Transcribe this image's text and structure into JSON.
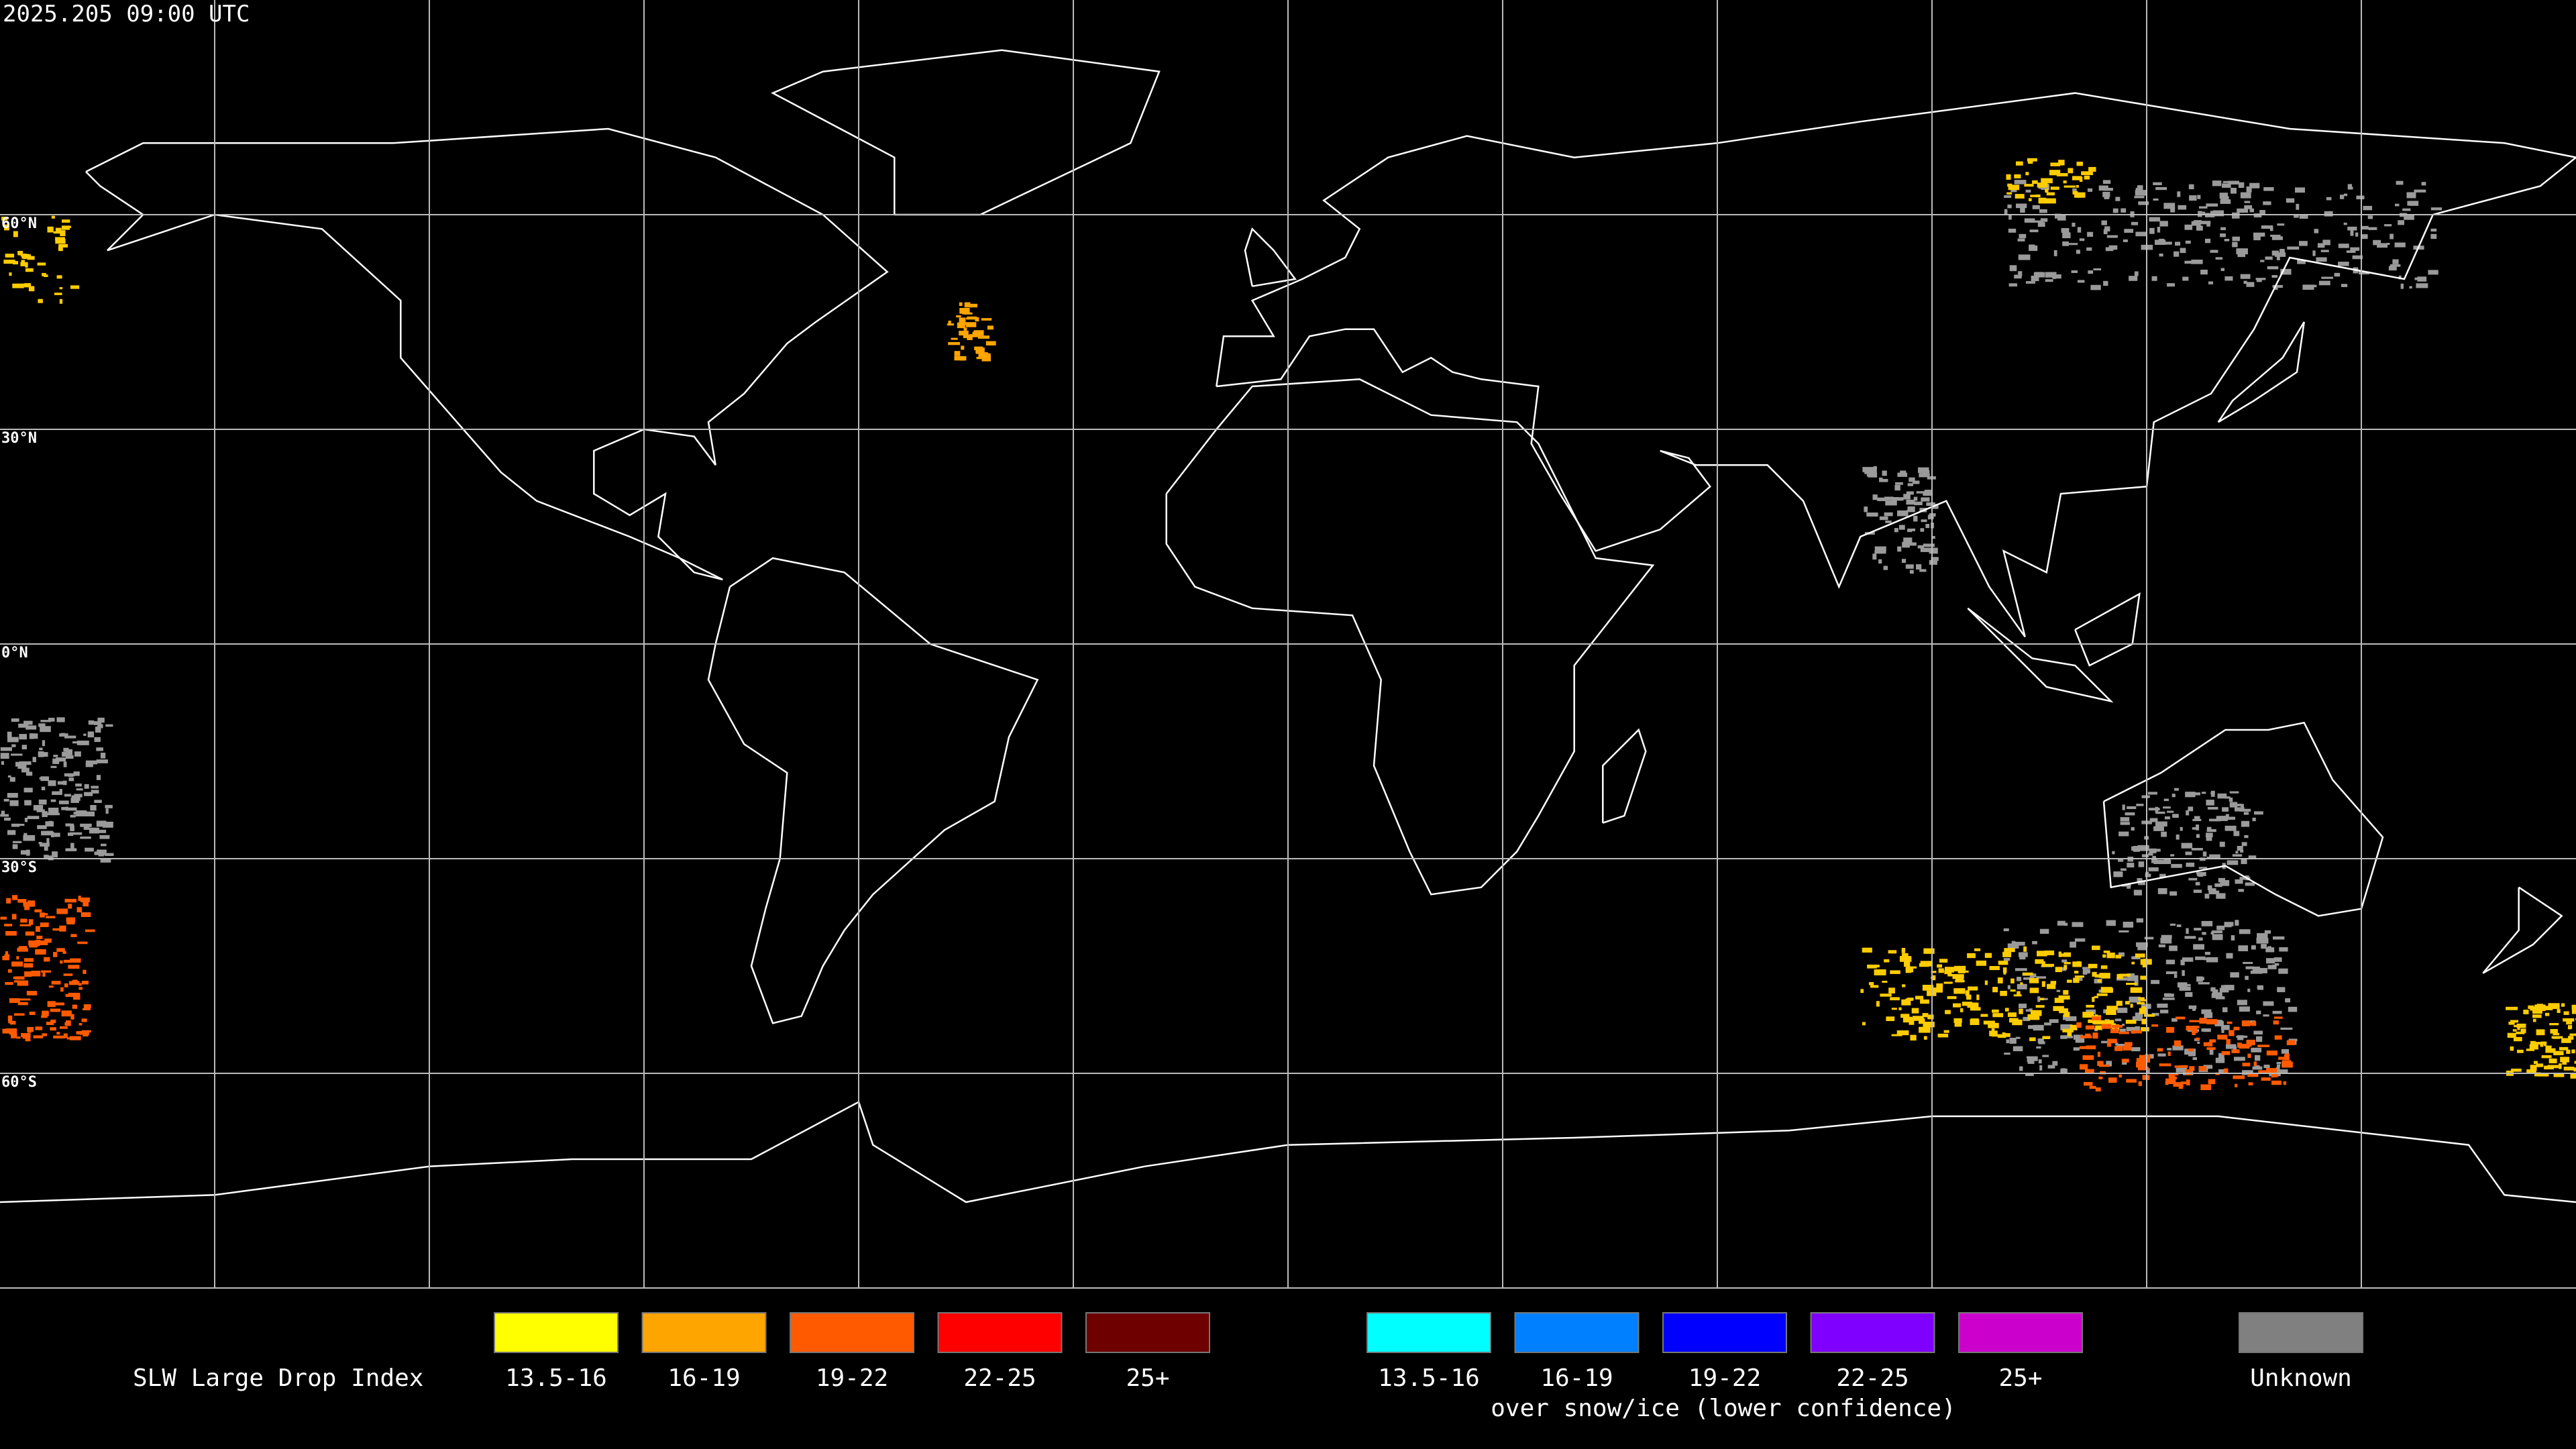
{
  "header": {
    "timestamp": "2025.205 09:00 UTC"
  },
  "grid": {
    "latitude_labels": [
      "60°N",
      "30°N",
      "0°N",
      "30°S",
      "60°S"
    ]
  },
  "legend": {
    "title": "SLW Large Drop Index",
    "items": [
      {
        "label": "13.5-16",
        "color": "#ffff00"
      },
      {
        "label": "16-19",
        "color": "#ffa500"
      },
      {
        "label": "19-22",
        "color": "#ff5a00"
      },
      {
        "label": "22-25",
        "color": "#ff0000"
      },
      {
        "label": "25+",
        "color": "#6e0000"
      }
    ],
    "snow_items": [
      {
        "label": "13.5-16",
        "color": "#00ffff"
      },
      {
        "label": "16-19",
        "color": "#0080ff"
      },
      {
        "label": "19-22",
        "color": "#0000ff"
      },
      {
        "label": "22-25",
        "color": "#8000ff"
      },
      {
        "label": "25+",
        "color": "#cc00cc"
      }
    ],
    "snow_caption": "over snow/ice (lower confidence)",
    "unknown": {
      "label": "Unknown",
      "color": "#808080"
    }
  }
}
